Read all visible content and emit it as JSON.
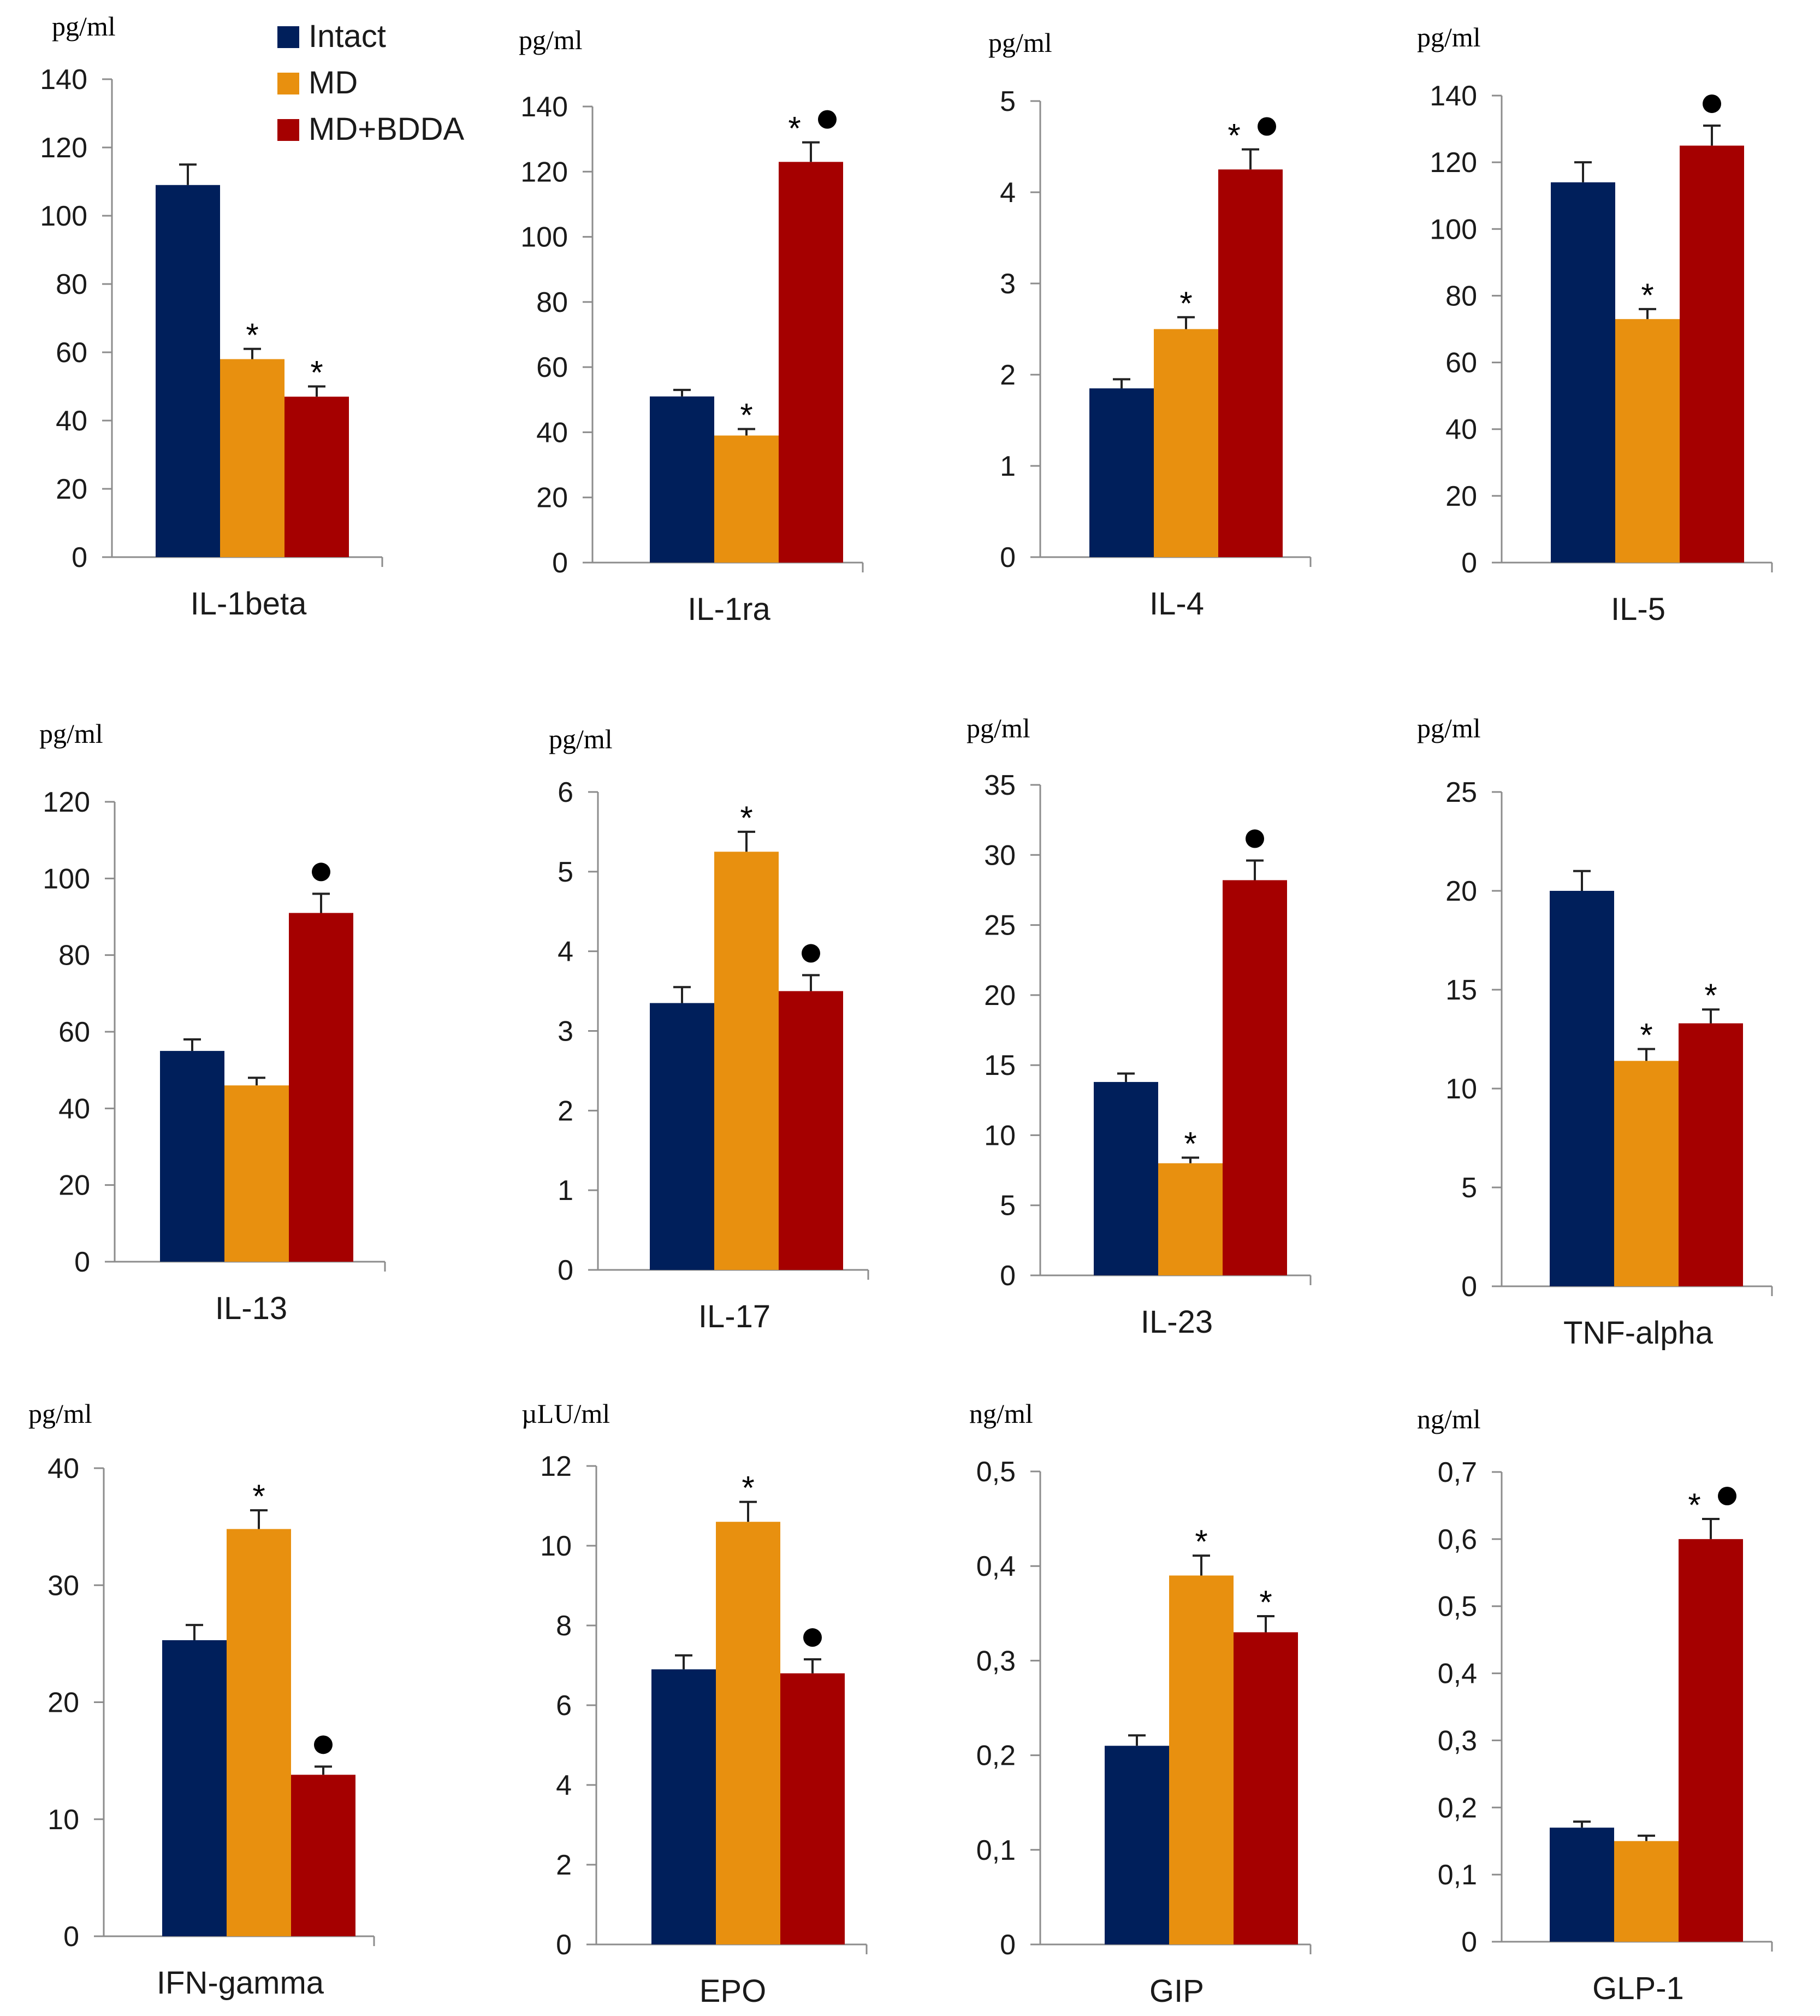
{
  "series": [
    {
      "name": "Intact",
      "color": "#001f5b"
    },
    {
      "name": "MD",
      "color": "#e8900f"
    },
    {
      "name": "MD+BDDA",
      "color": "#a50000"
    }
  ],
  "chart_data": [
    {
      "type": "bar",
      "title": "IL-1beta",
      "unit": "pg/ml",
      "ylim": [
        0,
        140
      ],
      "yticks": [
        "0",
        "20",
        "40",
        "60",
        "80",
        "100",
        "120",
        "140"
      ],
      "values": [
        109,
        58,
        47
      ],
      "errors": [
        6,
        3,
        3
      ],
      "marks": [
        "",
        "*",
        "*"
      ]
    },
    {
      "type": "bar",
      "title": "IL-1ra",
      "unit": "pg/ml",
      "ylim": [
        0,
        140
      ],
      "yticks": [
        "0",
        "20",
        "40",
        "60",
        "80",
        "100",
        "120",
        "140"
      ],
      "values": [
        51,
        39,
        123
      ],
      "errors": [
        2,
        2,
        6
      ],
      "marks": [
        "",
        "*",
        "*●"
      ]
    },
    {
      "type": "bar",
      "title": "IL-4",
      "unit": "pg/ml",
      "ylim": [
        0,
        5
      ],
      "yticks": [
        "0",
        "1",
        "2",
        "3",
        "4",
        "5"
      ],
      "values": [
        1.85,
        2.5,
        4.25
      ],
      "errors": [
        0.1,
        0.13,
        0.22
      ],
      "marks": [
        "",
        "*",
        "*●"
      ]
    },
    {
      "type": "bar",
      "title": "IL-5",
      "unit": "pg/ml",
      "ylim": [
        0,
        140
      ],
      "yticks": [
        "0",
        "20",
        "40",
        "60",
        "80",
        "100",
        "120",
        "140"
      ],
      "values": [
        114,
        73,
        125
      ],
      "errors": [
        6,
        3,
        6
      ],
      "marks": [
        "",
        "*",
        "●"
      ]
    },
    {
      "type": "bar",
      "title": "IL-13",
      "unit": "pg/ml",
      "ylim": [
        0,
        120
      ],
      "yticks": [
        "0",
        "20",
        "40",
        "60",
        "80",
        "100",
        "120"
      ],
      "values": [
        55,
        46,
        91
      ],
      "errors": [
        3,
        2,
        5
      ],
      "marks": [
        "",
        "",
        "●"
      ]
    },
    {
      "type": "bar",
      "title": "IL-17",
      "unit": "pg/ml",
      "ylim": [
        0,
        6
      ],
      "yticks": [
        "0",
        "1",
        "2",
        "3",
        "4",
        "5",
        "6"
      ],
      "values": [
        3.35,
        5.25,
        3.5
      ],
      "errors": [
        0.2,
        0.25,
        0.2
      ],
      "marks": [
        "",
        "*",
        "●"
      ]
    },
    {
      "type": "bar",
      "title": "IL-23",
      "unit": "pg/ml",
      "ylim": [
        0,
        35
      ],
      "yticks": [
        "0",
        "5",
        "10",
        "15",
        "20",
        "25",
        "30",
        "35"
      ],
      "values": [
        13.8,
        8.0,
        28.2
      ],
      "errors": [
        0.6,
        0.4,
        1.4
      ],
      "marks": [
        "",
        "*",
        "●"
      ]
    },
    {
      "type": "bar",
      "title": "TNF-alpha",
      "unit": "pg/ml",
      "ylim": [
        0,
        25
      ],
      "yticks": [
        "0",
        "5",
        "10",
        "15",
        "20",
        "25"
      ],
      "values": [
        20.0,
        11.4,
        13.3
      ],
      "errors": [
        1.0,
        0.6,
        0.7
      ],
      "marks": [
        "",
        "*",
        "*"
      ]
    },
    {
      "type": "bar",
      "title": "IFN-gamma",
      "unit": "pg/ml",
      "ylim": [
        0,
        40
      ],
      "yticks": [
        "0",
        "10",
        "20",
        "30",
        "40"
      ],
      "values": [
        25.3,
        34.8,
        13.8
      ],
      "errors": [
        1.3,
        1.6,
        0.7
      ],
      "marks": [
        "",
        "*",
        "●"
      ]
    },
    {
      "type": "bar",
      "title": "EPO",
      "unit": "µLU/ml",
      "ylim": [
        0,
        12
      ],
      "yticks": [
        "0",
        "2",
        "4",
        "6",
        "8",
        "10",
        "12"
      ],
      "values": [
        6.9,
        10.6,
        6.8
      ],
      "errors": [
        0.35,
        0.5,
        0.35
      ],
      "marks": [
        "",
        "*",
        "●"
      ]
    },
    {
      "type": "bar",
      "title": "GIP",
      "unit": "ng/ml",
      "ylim": [
        0,
        0.5
      ],
      "yticks": [
        "0",
        "0,1",
        "0,2",
        "0,3",
        "0,4",
        "0,5"
      ],
      "values": [
        0.21,
        0.39,
        0.33
      ],
      "errors": [
        0.011,
        0.021,
        0.017
      ],
      "marks": [
        "",
        "*",
        "*"
      ]
    },
    {
      "type": "bar",
      "title": "GLP-1",
      "unit": "ng/ml",
      "ylim": [
        0,
        0.7
      ],
      "yticks": [
        "0",
        "0,1",
        "0,2",
        "0,3",
        "0,4",
        "0,5",
        "0,6",
        "0,7"
      ],
      "values": [
        0.17,
        0.15,
        0.6
      ],
      "errors": [
        0.009,
        0.008,
        0.03
      ],
      "marks": [
        "",
        "",
        "*●"
      ]
    }
  ]
}
